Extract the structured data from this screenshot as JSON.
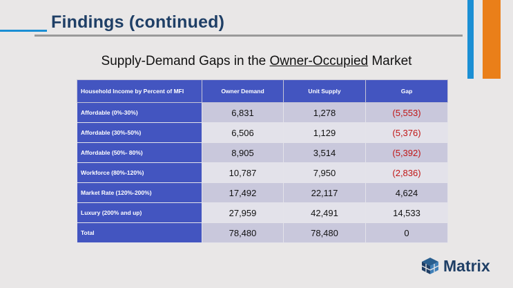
{
  "slide": {
    "title": "Findings (continued)",
    "subtitle_pre": "Supply-Demand Gaps in the ",
    "subtitle_underlined": "Owner-Occupied",
    "subtitle_post": " Market"
  },
  "table": {
    "headers": [
      "Household Income by Percent of MFI",
      "Owner Demand",
      "Unit Supply",
      "Gap"
    ],
    "rows": [
      {
        "label": "Affordable (0%-30%)",
        "demand": "6,831",
        "supply": "1,278",
        "gap": "(5,553)"
      },
      {
        "label": "Affordable (30%-50%)",
        "demand": "6,506",
        "supply": "1,129",
        "gap": "(5,376)"
      },
      {
        "label": "Affordable (50%- 80%)",
        "demand": "8,905",
        "supply": "3,514",
        "gap": "(5,392)"
      },
      {
        "label": "Workforce (80%-120%)",
        "demand": "10,787",
        "supply": "7,950",
        "gap": "(2,836)"
      },
      {
        "label": "Market Rate (120%-200%)",
        "demand": "17,492",
        "supply": "22,117",
        "gap": "4,624"
      },
      {
        "label": "Luxury (200% and up)",
        "demand": "27,959",
        "supply": "42,491",
        "gap": "14,533"
      },
      {
        "label": "Total",
        "demand": "78,480",
        "supply": "78,480",
        "gap": "0"
      }
    ]
  },
  "logo": {
    "text": "Matrix",
    "icon": "cube-icon"
  },
  "colors": {
    "header_blue": "#4355c0",
    "negative_red": "#c01515",
    "accent_blue": "#1b8fd4",
    "accent_orange": "#ea7f19",
    "title_navy": "#1f3f66"
  }
}
